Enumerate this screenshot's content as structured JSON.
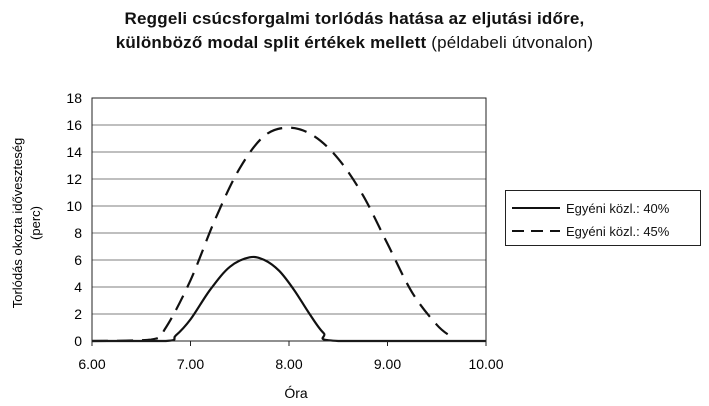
{
  "chart_data": {
    "type": "line",
    "title_bold": "Reggeli csúcsforgalmi torlódás hatása az eljutási időre,",
    "title_line2_bold": "különböző modal split értékek mellett",
    "title_line2_normal": " (példabeli útvonalon)",
    "xlabel": "Óra",
    "ylabel_line1": "Torlódás okozta időveszteség",
    "ylabel_line2": "(perc)",
    "xlim": [
      6.0,
      10.0
    ],
    "ylim": [
      0,
      18
    ],
    "xticks": [
      "6.00",
      "7.00",
      "8.00",
      "9.00",
      "10.00"
    ],
    "yticks": [
      "0",
      "2",
      "4",
      "6",
      "8",
      "10",
      "12",
      "14",
      "16",
      "18"
    ],
    "grid": "horizontal",
    "legend_position": "right",
    "series": [
      {
        "name": "Egyéni közl.: 40%",
        "style": "solid",
        "color": "#111111",
        "x": [
          6.0,
          6.75,
          6.85,
          7.0,
          7.2,
          7.4,
          7.6,
          7.75,
          7.9,
          8.05,
          8.2,
          8.35,
          8.5,
          10.0
        ],
        "y": [
          0,
          0,
          0.4,
          1.6,
          3.8,
          5.5,
          6.2,
          6.0,
          5.2,
          3.8,
          2.1,
          0.6,
          0,
          0
        ]
      },
      {
        "name": "Egyéni közl.: 45%",
        "style": "dashed",
        "color": "#111111",
        "x": [
          6.0,
          6.6,
          6.75,
          7.0,
          7.25,
          7.5,
          7.75,
          8.0,
          8.25,
          8.5,
          8.75,
          9.0,
          9.25,
          9.5,
          9.65
        ],
        "y": [
          0,
          0.1,
          1.0,
          4.5,
          9.0,
          12.8,
          15.2,
          15.8,
          15.2,
          13.5,
          10.8,
          7.2,
          3.6,
          1.2,
          0.3
        ]
      }
    ]
  }
}
